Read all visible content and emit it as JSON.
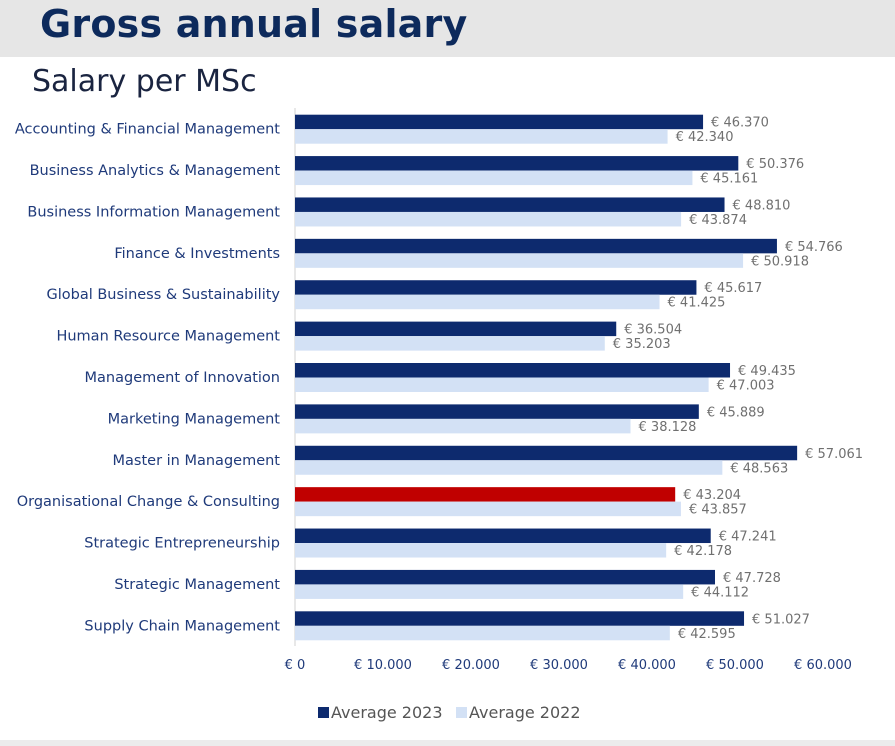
{
  "header": {
    "title": "Gross annual salary"
  },
  "chart_data": {
    "type": "bar",
    "orientation": "horizontal",
    "title": "Salary per MSc",
    "xlabel": "",
    "ylabel": "",
    "xlim": [
      0,
      60000
    ],
    "x_ticks": [
      0,
      10000,
      20000,
      30000,
      40000,
      50000,
      60000
    ],
    "x_tick_labels": [
      "€ 0",
      "€ 10.000",
      "€ 20.000",
      "€ 30.000",
      "€ 40.000",
      "€ 50.000",
      "€ 60.000"
    ],
    "grid": false,
    "legend_position": "bottom",
    "categories": [
      "Accounting & Financial Management",
      "Business Analytics & Management",
      "Business Information Management",
      "Finance & Investments",
      "Global Business & Sustainability",
      "Human Resource Management",
      "Management of Innovation",
      "Marketing Management",
      "Master in Management",
      "Organisational Change & Consulting",
      "Strategic Entrepreneurship",
      "Strategic Management",
      "Supply Chain Management"
    ],
    "series": [
      {
        "name": "Average 2023",
        "color": "#0d2a6e",
        "values": [
          46370,
          50376,
          48810,
          54766,
          45617,
          36504,
          49435,
          45889,
          57061,
          43204,
          47241,
          47728,
          51027
        ],
        "labels": [
          "€ 46.370",
          "€ 50.376",
          "€ 48.810",
          "€ 54.766",
          "€ 45.617",
          "€ 36.504",
          "€ 49.435",
          "€ 45.889",
          "€ 57.061",
          "€ 43.204",
          "€ 47.241",
          "€ 47.728",
          "€ 51.027"
        ]
      },
      {
        "name": "Average 2022",
        "color": "#d3e1f5",
        "values": [
          42340,
          45161,
          43874,
          50918,
          41425,
          35203,
          47003,
          38128,
          48563,
          43857,
          42178,
          44112,
          42595
        ],
        "labels": [
          "€ 42.340",
          "€ 45.161",
          "€ 43.874",
          "€ 50.918",
          "€ 41.425",
          "€ 35.203",
          "€ 47.003",
          "€ 38.128",
          "€ 48.563",
          "€ 43.857",
          "€ 42.178",
          "€ 44.112",
          "€ 42.595"
        ]
      }
    ],
    "highlight": {
      "category_index": 9,
      "series_index": 0,
      "color": "#c00000"
    }
  }
}
